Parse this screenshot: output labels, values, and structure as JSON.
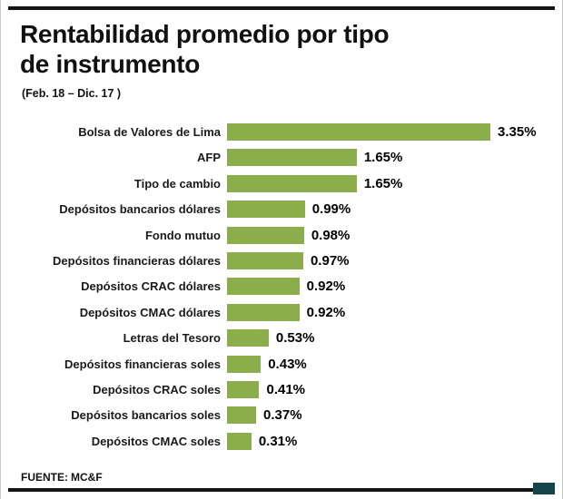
{
  "title_lines": [
    "Rentabilidad promedio por tipo",
    "de instrumento"
  ],
  "subtitle": "(Feb. 18 – Dic. 17 )",
  "footer": {
    "source_label": "FUENTE:",
    "source_value": "MC&F"
  },
  "colors": {
    "bar": "#8cad4b",
    "rule": "#141414",
    "corner_box": "#15454b"
  },
  "chart_data": {
    "type": "bar",
    "orientation": "horizontal",
    "title": "Rentabilidad promedio por tipo de instrumento",
    "subtitle": "(Feb. 18 – Dic. 17 )",
    "xlabel": "",
    "ylabel": "",
    "xlim": [
      0,
      3.5
    ],
    "grid": false,
    "legend": false,
    "categories": [
      "Bolsa de Valores de Lima",
      "AFP",
      "Tipo de cambio",
      "Depósitos bancarios dólares",
      "Fondo mutuo",
      "Depósitos financieras dólares",
      "Depósitos CRAC dólares",
      "Depósitos CMAC dólares",
      "Letras del Tesoro",
      "Depósitos financieras soles",
      "Depósitos CRAC soles",
      "Depósitos bancarios soles",
      "Depósitos CMAC soles"
    ],
    "values": [
      3.35,
      1.65,
      1.65,
      0.99,
      0.98,
      0.97,
      0.92,
      0.92,
      0.53,
      0.43,
      0.41,
      0.37,
      0.31
    ],
    "value_labels": [
      "3.35%",
      "1.65%",
      "1.65%",
      "0.99%",
      "0.98%",
      "0.97%",
      "0.92%",
      "0.92%",
      "0.53%",
      "0.43%",
      "0.41%",
      "0.37%",
      "0.31%"
    ]
  }
}
